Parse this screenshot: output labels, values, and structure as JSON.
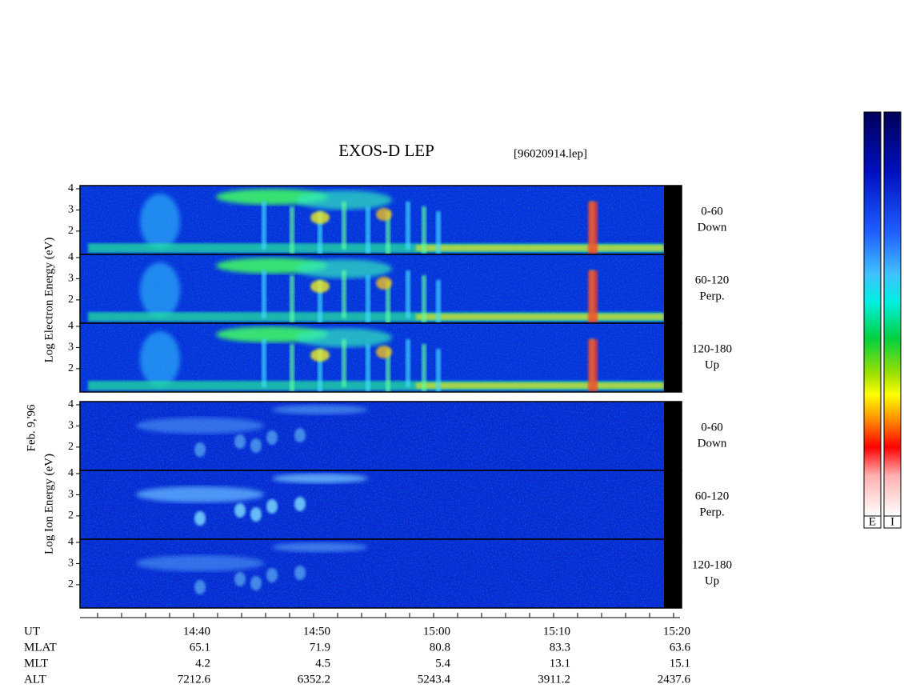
{
  "title": "EXOS-D LEP",
  "file": "[96020914.lep]",
  "date": "Feb. 9,'96",
  "electron_axis_label": "Log Electron Energy (eV)",
  "ion_axis_label": "Log Ion Energy (eV)",
  "electron_panels": [
    {
      "range": "0-60",
      "direction": "Down"
    },
    {
      "range": "60-120",
      "direction": "Perp."
    },
    {
      "range": "120-180",
      "direction": "Up"
    }
  ],
  "ion_panels": [
    {
      "range": "0-60",
      "direction": "Down"
    },
    {
      "range": "60-120",
      "direction": "Perp."
    },
    {
      "range": "120-180",
      "direction": "Up"
    }
  ],
  "energy_lim": [
    0.9,
    4.15
  ],
  "energy_ticks": [
    2,
    3,
    4
  ],
  "ephemeris": [
    {
      "label": "UT",
      "values": [
        "14:40",
        "14:50",
        "15:00",
        "15:10",
        "15:20"
      ]
    },
    {
      "label": "MLAT",
      "values": [
        65.1,
        71.9,
        80.8,
        83.3,
        63.6
      ]
    },
    {
      "label": "MLT",
      "values": [
        4.2,
        4.5,
        5.4,
        13.1,
        15.1
      ]
    },
    {
      "label": "ALT",
      "values": [
        7212.6,
        6352.2,
        5243.4,
        3911.2,
        2437.6
      ]
    }
  ],
  "colorbar_labels": [
    "E",
    "I"
  ]
}
